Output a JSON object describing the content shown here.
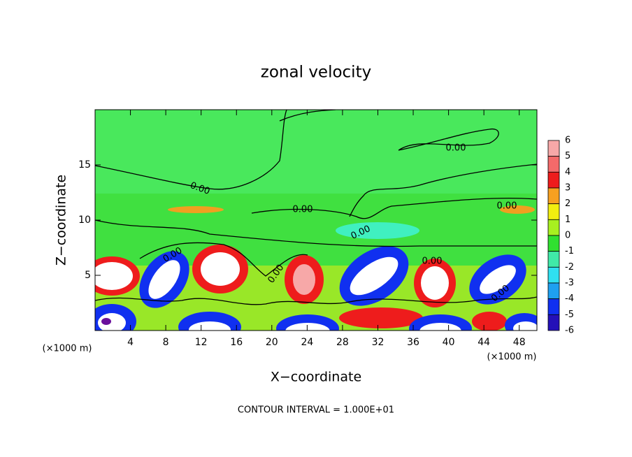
{
  "chart_data": {
    "type": "contour",
    "title": "zonal velocity",
    "x_label": "X−coordinate",
    "y_label": "Z−coordinate",
    "x_units": "(×1000 m)",
    "y_units": "(×1000 m)",
    "footer": "CONTOUR INTERVAL = 1.000E+01",
    "xlim": [
      0,
      50
    ],
    "xticks": [
      4,
      8,
      12,
      16,
      20,
      24,
      28,
      32,
      36,
      40,
      44,
      48
    ],
    "ylim": [
      0,
      20
    ],
    "yticks": [
      5,
      10,
      15
    ],
    "contour_labels": [
      "0.00",
      "0.00",
      "0.00",
      "0.00",
      "0.00",
      "0.00",
      "0.00",
      "0.00",
      "0.00"
    ],
    "colorbar": {
      "levels": [
        6,
        5,
        4,
        3,
        2,
        1,
        0,
        -1,
        -2,
        -3,
        -4,
        -5,
        -6
      ],
      "colors": [
        "#f7a8a8",
        "#f46a6a",
        "#ee1c1c",
        "#f7a020",
        "#f2ee10",
        "#a8f020",
        "#30e030",
        "#40eaa8",
        "#30e0f0",
        "#1ea0f0",
        "#1030f0",
        "#2410b8",
        "#6a109c"
      ]
    }
  }
}
